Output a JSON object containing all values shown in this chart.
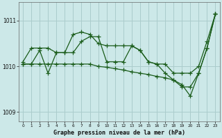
{
  "title": "Graphe pression niveau de la mer (hPa)",
  "bg_color": "#cce8e8",
  "grid_color": "#aacccc",
  "line_color": "#1a5c1a",
  "marker": "+",
  "markersize": 4,
  "linewidth": 0.9,
  "xlim": [
    -0.5,
    23.5
  ],
  "ylim": [
    1008.8,
    1011.4
  ],
  "yticks": [
    1009,
    1010,
    1011
  ],
  "xticks": [
    0,
    1,
    2,
    3,
    4,
    5,
    6,
    7,
    8,
    9,
    10,
    11,
    12,
    13,
    14,
    15,
    16,
    17,
    18,
    19,
    20,
    21,
    22,
    23
  ],
  "series": [
    [
      1010.1,
      1010.4,
      1010.4,
      1010.4,
      1010.3,
      1010.3,
      1010.7,
      1010.75,
      1010.7,
      1010.5,
      1010.45,
      1010.45,
      1010.45,
      1010.45,
      1010.35,
      1010.1,
      1010.05,
      1010.05,
      1009.85,
      1009.85,
      1009.85,
      1010.0,
      1010.55,
      1011.15
    ],
    [
      1010.05,
      1010.05,
      1010.35,
      1009.85,
      1010.3,
      1010.3,
      1010.3,
      1010.55,
      1010.65,
      1010.65,
      1010.1,
      1010.1,
      1010.1,
      1010.45,
      1010.35,
      1010.1,
      1010.05,
      1009.85,
      1009.7,
      1009.55,
      1009.55,
      1009.85,
      1010.4,
      1011.15
    ],
    [
      1010.05,
      1010.05,
      1010.05,
      1010.05,
      1010.05,
      1010.05,
      1010.05,
      1010.05,
      1010.05,
      1010.0,
      1009.98,
      1009.95,
      1009.92,
      1009.88,
      1009.85,
      1009.82,
      1009.78,
      1009.75,
      1009.7,
      1009.6,
      1009.35,
      1009.85,
      1010.4,
      1011.15
    ]
  ]
}
